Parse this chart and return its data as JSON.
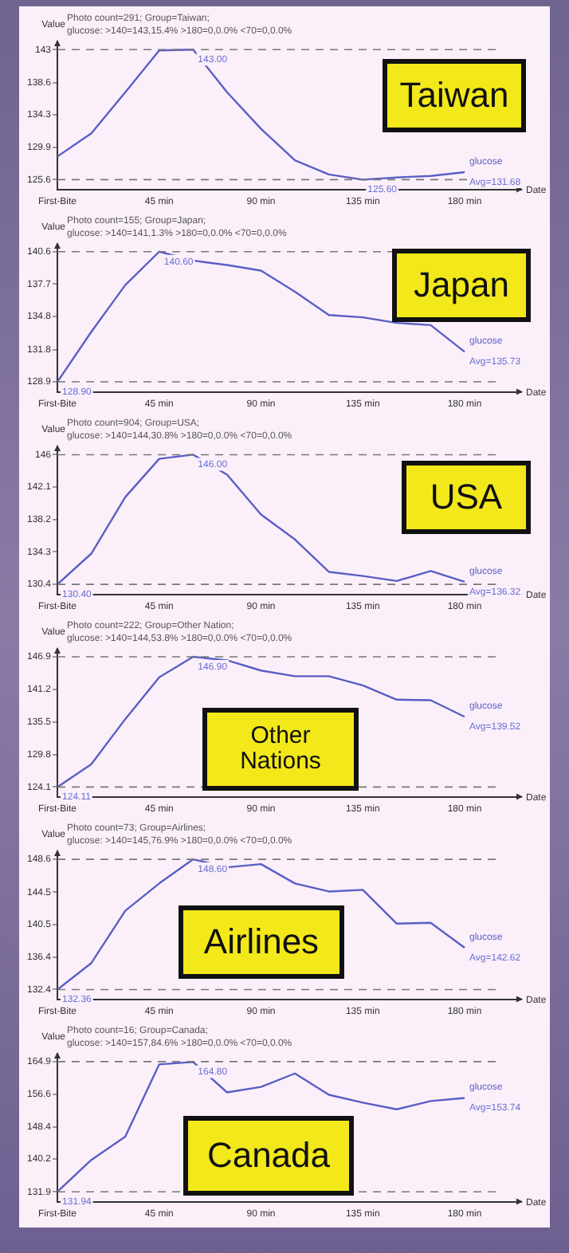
{
  "chart_data": [
    {
      "type": "line",
      "title": "Photo count=291; Group=Taiwan;",
      "subtitle": "glucose: >140=143,15.4% >180=0,0.0% <70=0,0.0%",
      "xlabel": "Date",
      "ylabel": "Value",
      "x": [
        0,
        15,
        30,
        45,
        60,
        75,
        90,
        105,
        120,
        135,
        150,
        165,
        180
      ],
      "series": [
        {
          "name": "glucose",
          "color": "#5a5ec4",
          "values": [
            128.7,
            131.8,
            137.3,
            142.9,
            143.0,
            137.3,
            132.4,
            128.2,
            126.3,
            125.6,
            125.9,
            126.1,
            126.6
          ]
        }
      ],
      "xlim": [
        0,
        205
      ],
      "xticks": [
        {
          "value": 0,
          "label": "First-Bite"
        },
        {
          "value": 45,
          "label": "45 min"
        },
        {
          "value": 90,
          "label": "90 min"
        },
        {
          "value": 135,
          "label": "135 min"
        },
        {
          "value": 180,
          "label": "180 min"
        }
      ],
      "ylim": [
        124.3,
        144.1
      ],
      "yticks": [
        125.6,
        129.9,
        134.3,
        138.6,
        143.0
      ],
      "ref_lines": [
        {
          "axis": "y",
          "value": 143.0,
          "color": "#777777",
          "line_style": "dashed"
        },
        {
          "axis": "y",
          "value": 125.6,
          "color": "#777777",
          "line_style": "dashed"
        }
      ],
      "annotations": [
        "Taiwan",
        {
          "text": "Avg=131.68",
          "x": 180,
          "y": 126.6
        },
        {
          "text": "125.60",
          "x": 135,
          "y": 125.6
        },
        {
          "text": "143.00",
          "x": 60,
          "y": 143.0
        }
      ],
      "grid": false,
      "legend": false,
      "marker": "none",
      "line_style": "solid"
    },
    {
      "type": "line",
      "title": "Photo count=155; Group=Japan;",
      "subtitle": "glucose: >140=141,1.3% >180=0,0.0% <70=0,0.0%",
      "xlabel": "Date",
      "ylabel": "Value",
      "x": [
        0,
        15,
        30,
        45,
        60,
        75,
        90,
        105,
        120,
        135,
        150,
        165,
        180
      ],
      "series": [
        {
          "name": "glucose",
          "color": "#5a5ec4",
          "values": [
            128.9,
            133.4,
            137.6,
            140.6,
            139.8,
            139.4,
            138.9,
            137.0,
            134.9,
            134.7,
            134.2,
            134.0,
            131.6
          ]
        }
      ],
      "xlim": [
        0,
        205
      ],
      "xticks": [
        {
          "value": 0,
          "label": "First-Bite"
        },
        {
          "value": 45,
          "label": "45 min"
        },
        {
          "value": 90,
          "label": "90 min"
        },
        {
          "value": 135,
          "label": "135 min"
        },
        {
          "value": 180,
          "label": "180 min"
        }
      ],
      "ylim": [
        128.0,
        141.3
      ],
      "yticks": [
        128.9,
        131.8,
        134.8,
        137.7,
        140.6
      ],
      "ref_lines": [
        {
          "axis": "y",
          "value": 140.6,
          "color": "#777777",
          "line_style": "dashed"
        },
        {
          "axis": "y",
          "value": 128.9,
          "color": "#777777",
          "line_style": "dashed"
        }
      ],
      "annotations": [
        "Japan",
        {
          "text": "Avg=135.73",
          "x": 180,
          "y": 131.6
        },
        {
          "text": "128.90",
          "x": 0,
          "y": 128.9
        },
        {
          "text": "140.60",
          "x": 45,
          "y": 140.6
        }
      ],
      "grid": false,
      "legend": false,
      "marker": "none",
      "line_style": "solid"
    },
    {
      "type": "line",
      "title": "Photo count=904; Group=USA;",
      "subtitle": "glucose: >140=144,30.8% >180=0,0.0% <70=0,0.0%",
      "xlabel": "Date",
      "ylabel": "Value",
      "x": [
        0,
        15,
        30,
        45,
        60,
        75,
        90,
        105,
        120,
        135,
        150,
        165,
        180
      ],
      "series": [
        {
          "name": "glucose",
          "color": "#5a5ec4",
          "values": [
            130.4,
            134.1,
            140.9,
            145.5,
            146.0,
            143.6,
            138.8,
            135.8,
            131.9,
            131.4,
            130.8,
            132.0,
            130.7
          ]
        }
      ],
      "xlim": [
        0,
        205
      ],
      "xticks": [
        {
          "value": 0,
          "label": "First-Bite"
        },
        {
          "value": 45,
          "label": "45 min"
        },
        {
          "value": 90,
          "label": "90 min"
        },
        {
          "value": 135,
          "label": "135 min"
        },
        {
          "value": 180,
          "label": "180 min"
        }
      ],
      "ylim": [
        129.2,
        147.0
      ],
      "yticks": [
        130.4,
        134.3,
        138.2,
        142.1,
        146.0
      ],
      "ref_lines": [
        {
          "axis": "y",
          "value": 146.0,
          "color": "#777777",
          "line_style": "dashed"
        },
        {
          "axis": "y",
          "value": 130.4,
          "color": "#777777",
          "line_style": "dashed"
        }
      ],
      "annotations": [
        "USA",
        {
          "text": "Avg=136.32",
          "x": 180,
          "y": 130.7
        },
        {
          "text": "130.40",
          "x": 0,
          "y": 130.4
        },
        {
          "text": "146.00",
          "x": 60,
          "y": 146.0
        }
      ],
      "grid": false,
      "legend": false,
      "marker": "none",
      "line_style": "solid"
    },
    {
      "type": "line",
      "title": "Photo count=222; Group=Other Nation;",
      "subtitle": "glucose: >140=144,53.8% >180=0,0.0% <70=0,0.0%",
      "xlabel": "Date",
      "ylabel": "Value",
      "x": [
        0,
        15,
        30,
        45,
        60,
        75,
        90,
        105,
        120,
        135,
        150,
        165,
        180
      ],
      "series": [
        {
          "name": "glucose",
          "color": "#5a5ec4",
          "values": [
            124.1,
            128.1,
            136.0,
            143.3,
            146.9,
            146.3,
            144.5,
            143.5,
            143.5,
            141.9,
            139.4,
            139.3,
            136.4
          ]
        }
      ],
      "xlim": [
        0,
        205
      ],
      "xticks": [
        {
          "value": 0,
          "label": "First-Bite"
        },
        {
          "value": 45,
          "label": "45 min"
        },
        {
          "value": 90,
          "label": "90 min"
        },
        {
          "value": 135,
          "label": "135 min"
        },
        {
          "value": 180,
          "label": "180 min"
        }
      ],
      "ylim": [
        122.4,
        148.3
      ],
      "yticks": [
        124.1,
        129.8,
        135.5,
        141.2,
        146.9
      ],
      "ref_lines": [
        {
          "axis": "y",
          "value": 146.9,
          "color": "#777777",
          "line_style": "dashed"
        },
        {
          "axis": "y",
          "value": 124.1,
          "color": "#777777",
          "line_style": "dashed"
        }
      ],
      "annotations": [
        "Other Nations",
        {
          "text": "Avg=139.52",
          "x": 180,
          "y": 136.4
        },
        {
          "text": "124.11",
          "x": 0,
          "y": 124.1
        },
        {
          "text": "146.90",
          "x": 60,
          "y": 146.9
        }
      ],
      "grid": false,
      "legend": false,
      "marker": "none",
      "line_style": "solid"
    },
    {
      "type": "line",
      "title": "Photo count=73; Group=Airlines;",
      "subtitle": "glucose: >140=145,76.9% >180=0,0.0% <70=0,0.0%",
      "xlabel": "Date",
      "ylabel": "Value",
      "x": [
        0,
        15,
        30,
        45,
        60,
        75,
        90,
        105,
        120,
        135,
        150,
        165,
        180
      ],
      "series": [
        {
          "name": "glucose",
          "color": "#5a5ec4",
          "values": [
            132.4,
            135.7,
            142.2,
            145.6,
            148.6,
            147.6,
            148.0,
            145.6,
            144.6,
            144.8,
            140.6,
            140.7,
            137.6
          ]
        }
      ],
      "xlim": [
        0,
        205
      ],
      "xticks": [
        {
          "value": 0,
          "label": "First-Bite"
        },
        {
          "value": 45,
          "label": "45 min"
        },
        {
          "value": 90,
          "label": "90 min"
        },
        {
          "value": 135,
          "label": "135 min"
        },
        {
          "value": 180,
          "label": "180 min"
        }
      ],
      "ylim": [
        131.2,
        149.6
      ],
      "yticks": [
        132.4,
        136.4,
        140.5,
        144.5,
        148.6
      ],
      "ref_lines": [
        {
          "axis": "y",
          "value": 148.6,
          "color": "#777777",
          "line_style": "dashed"
        },
        {
          "axis": "y",
          "value": 132.4,
          "color": "#777777",
          "line_style": "dashed"
        }
      ],
      "annotations": [
        "Airlines",
        {
          "text": "Avg=142.62",
          "x": 180,
          "y": 137.6
        },
        {
          "text": "132.36",
          "x": 0,
          "y": 132.4
        },
        {
          "text": "148.60",
          "x": 60,
          "y": 148.6
        }
      ],
      "grid": false,
      "legend": false,
      "marker": "none",
      "line_style": "solid"
    },
    {
      "type": "line",
      "title": "Photo count=16; Group=Canada;",
      "subtitle": "glucose: >140=157,84.6% >180=0,0.0% <70=0,0.0%",
      "xlabel": "Date",
      "ylabel": "Value",
      "x": [
        0,
        15,
        30,
        45,
        60,
        75,
        90,
        105,
        120,
        135,
        150,
        165,
        180
      ],
      "series": [
        {
          "name": "glucose",
          "color": "#5a5ec4",
          "values": [
            131.9,
            140.0,
            145.9,
            164.2,
            164.8,
            157.1,
            158.5,
            161.9,
            156.5,
            154.5,
            152.8,
            154.9,
            155.7
          ]
        }
      ],
      "xlim": [
        0,
        205
      ],
      "xticks": [
        {
          "value": 0,
          "label": "First-Bite"
        },
        {
          "value": 45,
          "label": "45 min"
        },
        {
          "value": 90,
          "label": "90 min"
        },
        {
          "value": 135,
          "label": "135 min"
        },
        {
          "value": 180,
          "label": "180 min"
        }
      ],
      "ylim": [
        129.4,
        166.9
      ],
      "yticks": [
        131.9,
        140.2,
        148.4,
        156.6,
        164.9
      ],
      "ref_lines": [
        {
          "axis": "y",
          "value": 164.9,
          "color": "#777777",
          "line_style": "dashed"
        },
        {
          "axis": "y",
          "value": 131.9,
          "color": "#777777",
          "line_style": "dashed"
        }
      ],
      "annotations": [
        "Canada",
        {
          "text": "Avg=153.74",
          "x": 180,
          "y": 155.7
        },
        {
          "text": "131.94",
          "x": 0,
          "y": 131.9
        },
        {
          "text": "164.80",
          "x": 60,
          "y": 164.8
        }
      ],
      "grid": false,
      "legend": false,
      "marker": "none",
      "line_style": "solid"
    }
  ]
}
